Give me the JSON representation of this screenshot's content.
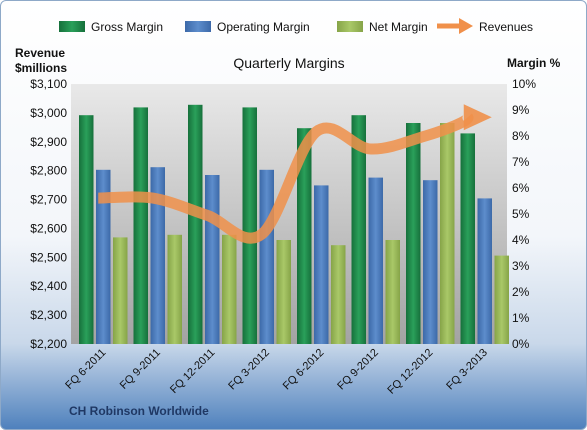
{
  "chart_data": {
    "type": "bar",
    "title": "Quarterly Margins",
    "subtitle": "CH Robinson Worldwide",
    "categories": [
      "FQ 6-2011",
      "FQ 9-2011",
      "FQ 12-2011",
      "FQ 3-2012",
      "FQ 6-2012",
      "FQ 9-2012",
      "FQ 12-2012",
      "FQ 3-2013"
    ],
    "left_axis": {
      "label_line1": "Revenue",
      "label_line2": "$millions",
      "min": 2200,
      "max": 3100,
      "step": 100,
      "tick_labels": [
        "$2,200",
        "$2,300",
        "$2,400",
        "$2,500",
        "$2,600",
        "$2,700",
        "$2,800",
        "$2,900",
        "$3,000",
        "$3,100"
      ]
    },
    "right_axis": {
      "label": "Margin %",
      "min": 0,
      "max": 10,
      "step": 1,
      "tick_labels": [
        "0%",
        "1%",
        "2%",
        "3%",
        "4%",
        "5%",
        "6%",
        "7%",
        "8%",
        "9%",
        "10%"
      ]
    },
    "series": [
      {
        "name": "Gross Margin",
        "type": "bar",
        "axis": "right",
        "color": "#1f8a4c",
        "values": [
          8.8,
          9.1,
          9.2,
          9.1,
          8.3,
          8.8,
          8.5,
          8.1
        ]
      },
      {
        "name": "Operating Margin",
        "type": "bar",
        "axis": "right",
        "color": "#4f7fc0",
        "values": [
          6.7,
          6.8,
          6.5,
          6.7,
          6.1,
          6.4,
          6.3,
          5.6
        ]
      },
      {
        "name": "Net Margin",
        "type": "bar",
        "axis": "right",
        "color": "#9bbb59",
        "values": [
          4.1,
          4.2,
          4.2,
          4.0,
          3.8,
          4.0,
          8.5,
          3.4
        ]
      },
      {
        "name": "Revenues",
        "type": "line",
        "axis": "left",
        "color": "#f0904a",
        "values": [
          2705,
          2705,
          2645,
          2580,
          2935,
          2875,
          2920,
          2985
        ]
      }
    ],
    "legend_position": "top",
    "grid": false
  }
}
